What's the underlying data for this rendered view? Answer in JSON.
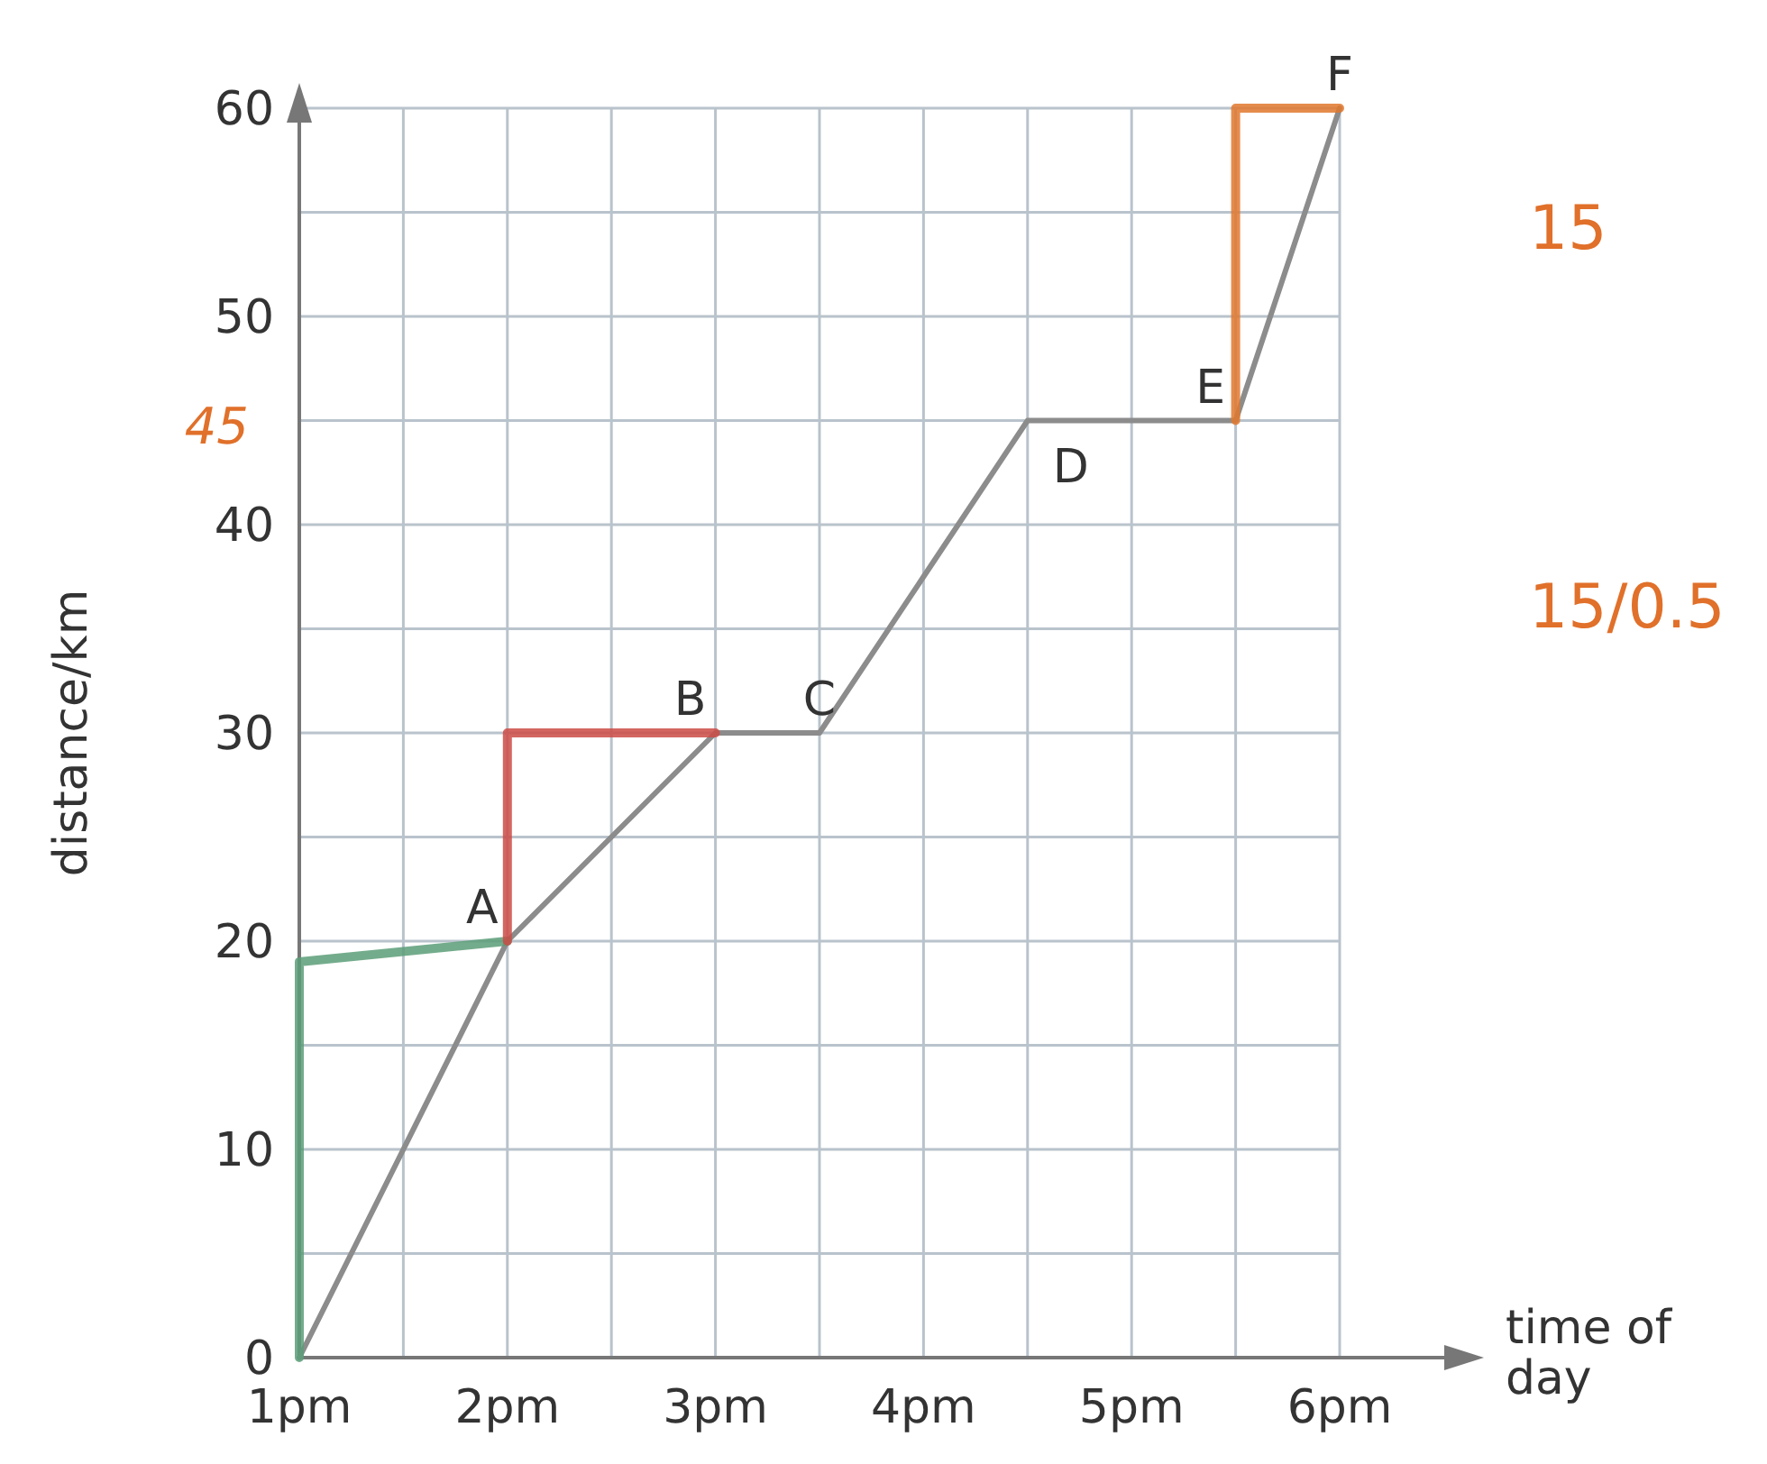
{
  "chart_data": {
    "type": "line",
    "xlabel": "time of day",
    "ylabel": "distance/km",
    "categories": [
      "1pm",
      null,
      "2pm",
      null,
      "3pm",
      null,
      "4pm",
      null,
      "5pm",
      null,
      "6pm"
    ],
    "ylim": [
      0,
      60
    ],
    "yticks": [
      0,
      {
        "value": 5,
        "label": null
      },
      10,
      {
        "value": 15,
        "label": null
      },
      20,
      {
        "value": 25,
        "label": null
      },
      30,
      {
        "value": 35,
        "label": null
      },
      40,
      {
        "value": 45,
        "label": null
      },
      50,
      {
        "value": 55,
        "label": null
      },
      60
    ],
    "grid": true,
    "marker": "none",
    "line_style": "solid",
    "series": [
      {
        "color": "#8c8c8c",
        "values": [
          0,
          10,
          20,
          25,
          30,
          30,
          37.5,
          45,
          45,
          45,
          60
        ]
      },
      {
        "color": "#5a9e78",
        "x": [
          "1pm",
          "1pm",
          "2pm"
        ],
        "values": [
          0,
          19,
          20
        ]
      },
      {
        "color": "#cc4b45",
        "x": [
          "2pm",
          "2pm",
          "3pm"
        ],
        "values": [
          20,
          30,
          30
        ]
      }
    ],
    "annotations": [
      {
        "text": "A",
        "x": "2pm",
        "y": 20
      },
      {
        "text": "B",
        "x": "3pm",
        "y": 30
      },
      {
        "text": "C",
        "y": 30
      },
      {
        "text": "D",
        "y": 45
      },
      {
        "text": "E",
        "y": 45
      },
      {
        "text": "F",
        "x": "6pm",
        "y": 60
      },
      "45",
      "15",
      "15/0.5"
    ]
  }
}
